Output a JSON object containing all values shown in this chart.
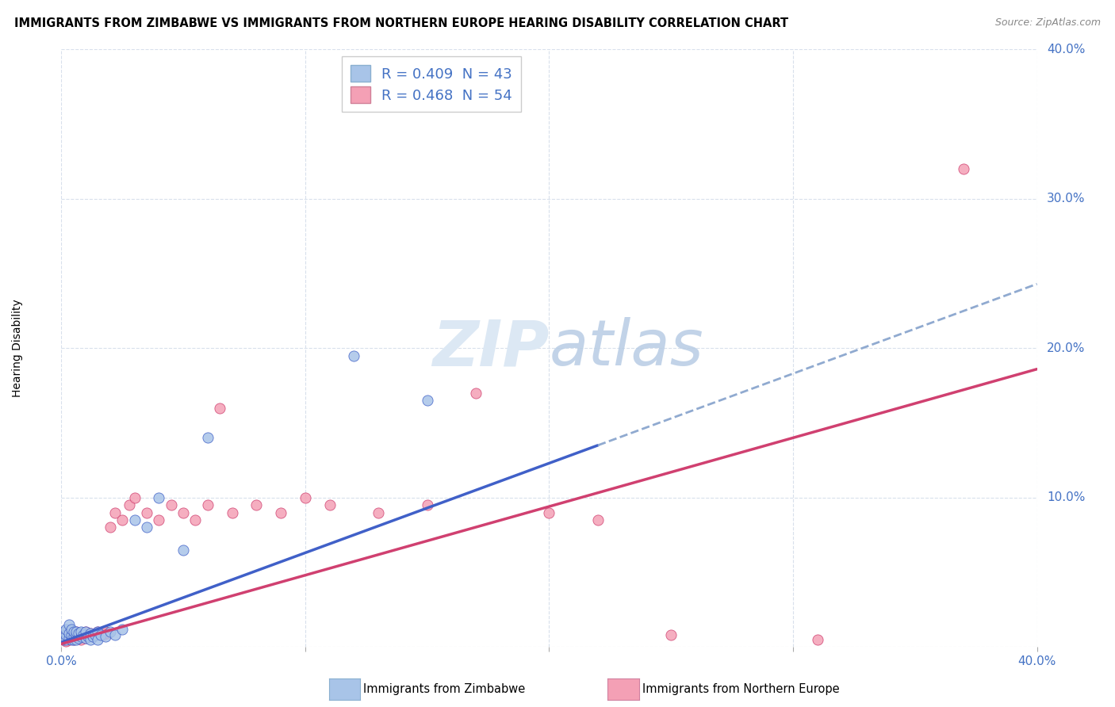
{
  "title": "IMMIGRANTS FROM ZIMBABWE VS IMMIGRANTS FROM NORTHERN EUROPE HEARING DISABILITY CORRELATION CHART",
  "source": "Source: ZipAtlas.com",
  "ylabel": "Hearing Disability",
  "xlim": [
    0.0,
    0.4
  ],
  "ylim": [
    0.0,
    0.4
  ],
  "legend_r1": "R = 0.409",
  "legend_n1": "N = 43",
  "legend_r2": "R = 0.468",
  "legend_n2": "N = 54",
  "footer1": "Immigrants from Zimbabwe",
  "footer2": "Immigrants from Northern Europe",
  "color_blue": "#a8c4e8",
  "color_pink": "#f4a0b5",
  "line_color_blue": "#4060c8",
  "line_color_pink": "#d04070",
  "line_dashed_color": "#90aad0",
  "grid_color": "#d8e0ec",
  "bg_color": "#ffffff",
  "watermark_color": "#dce8f4",
  "blue_x": [
    0.001,
    0.001,
    0.002,
    0.002,
    0.002,
    0.003,
    0.003,
    0.003,
    0.004,
    0.004,
    0.004,
    0.005,
    0.005,
    0.005,
    0.006,
    0.006,
    0.006,
    0.007,
    0.007,
    0.008,
    0.008,
    0.009,
    0.01,
    0.01,
    0.011,
    0.012,
    0.012,
    0.013,
    0.014,
    0.015,
    0.015,
    0.016,
    0.018,
    0.02,
    0.022,
    0.025,
    0.03,
    0.035,
    0.04,
    0.05,
    0.06,
    0.12,
    0.15
  ],
  "blue_y": [
    0.005,
    0.01,
    0.005,
    0.008,
    0.012,
    0.006,
    0.009,
    0.015,
    0.005,
    0.008,
    0.012,
    0.005,
    0.007,
    0.01,
    0.005,
    0.008,
    0.01,
    0.006,
    0.009,
    0.007,
    0.01,
    0.008,
    0.006,
    0.01,
    0.007,
    0.005,
    0.009,
    0.007,
    0.008,
    0.01,
    0.005,
    0.008,
    0.007,
    0.01,
    0.008,
    0.012,
    0.085,
    0.08,
    0.1,
    0.065,
    0.14,
    0.195,
    0.165
  ],
  "pink_x": [
    0.001,
    0.001,
    0.002,
    0.002,
    0.002,
    0.003,
    0.003,
    0.004,
    0.004,
    0.005,
    0.005,
    0.006,
    0.006,
    0.007,
    0.007,
    0.008,
    0.008,
    0.009,
    0.01,
    0.01,
    0.011,
    0.012,
    0.013,
    0.014,
    0.015,
    0.016,
    0.017,
    0.018,
    0.019,
    0.02,
    0.022,
    0.025,
    0.028,
    0.03,
    0.035,
    0.04,
    0.045,
    0.05,
    0.055,
    0.06,
    0.065,
    0.07,
    0.08,
    0.09,
    0.1,
    0.11,
    0.13,
    0.15,
    0.17,
    0.2,
    0.22,
    0.25,
    0.31,
    0.37
  ],
  "pink_y": [
    0.005,
    0.008,
    0.004,
    0.007,
    0.01,
    0.005,
    0.008,
    0.006,
    0.01,
    0.005,
    0.009,
    0.007,
    0.01,
    0.006,
    0.009,
    0.005,
    0.008,
    0.007,
    0.006,
    0.01,
    0.008,
    0.009,
    0.007,
    0.008,
    0.01,
    0.009,
    0.008,
    0.01,
    0.009,
    0.08,
    0.09,
    0.085,
    0.095,
    0.1,
    0.09,
    0.085,
    0.095,
    0.09,
    0.085,
    0.095,
    0.16,
    0.09,
    0.095,
    0.09,
    0.1,
    0.095,
    0.09,
    0.095,
    0.17,
    0.09,
    0.085,
    0.008,
    0.005,
    0.32
  ]
}
